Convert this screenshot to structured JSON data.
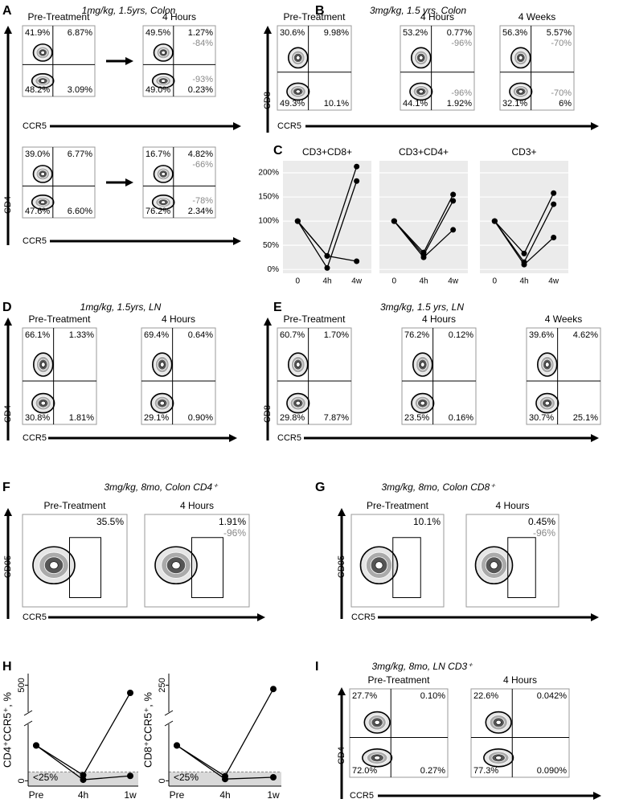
{
  "panels": [
    {
      "letter": "A",
      "title": "1mg/kg, 1.5yrs, Colon",
      "y_label": "CD4",
      "rows": [
        {
          "x_label": "CCR5",
          "plots": [
            {
              "title": "Pre-Treatment",
              "ul": "41.9%",
              "ur": "6.87%",
              "ll": "48.2%",
              "lr": "3.09%"
            },
            {
              "title": "4 Hours",
              "ul": "49.5%",
              "ur": "1.27%",
              "ur_change": "-84%",
              "ll": "49.0%",
              "lr": "0.23%",
              "lr_change": "-93%"
            }
          ]
        },
        {
          "x_label": "CCR5",
          "plots": [
            {
              "ul": "39.0%",
              "ur": "6.77%",
              "ll": "47.6%",
              "lr": "6.60%"
            },
            {
              "ul": "16.7%",
              "ur": "4.82%",
              "ur_change": "-66%",
              "ll": "76.2%",
              "lr": "2.34%",
              "lr_change": "-78%"
            }
          ]
        }
      ]
    },
    {
      "letter": "B",
      "title": "3mg/kg, 1.5 yrs, Colon",
      "y_label": "CD8",
      "rows": [
        {
          "x_label": "CCR5",
          "plots": [
            {
              "title": "Pre-Treatment",
              "ul": "30.6%",
              "ur": "9.98%",
              "ll": "49.3%",
              "lr": "10.1%"
            },
            {
              "title": "4 Hours",
              "ul": "53.2%",
              "ur": "0.77%",
              "ur_change": "-96%",
              "ll": "44.1%",
              "lr": "1.92%",
              "lr_change": "-96%"
            },
            {
              "title": "4 Weeks",
              "ul": "56.3%",
              "ur": "5.57%",
              "ur_change": "-70%",
              "ll": "32.1%",
              "lr": "6%",
              "lr_change": "-70%"
            }
          ]
        }
      ]
    },
    {
      "letter": "D",
      "title": "1mg/kg, 1.5yrs, LN",
      "y_label": "CD4",
      "rows": [
        {
          "x_label": "CCR5",
          "plots": [
            {
              "title": "Pre-Treatment",
              "ul": "66.1%",
              "ur": "1.33%",
              "ll": "30.8%",
              "lr": "1.81%"
            },
            {
              "title": "4 Hours",
              "ul": "69.4%",
              "ur": "0.64%",
              "ll": "29.1%",
              "lr": "0.90%"
            }
          ]
        }
      ]
    },
    {
      "letter": "E",
      "title": "3mg/kg, 1.5 yrs, LN",
      "y_label": "CD8",
      "rows": [
        {
          "x_label": "CCR5",
          "plots": [
            {
              "title": "Pre-Treatment",
              "ul": "60.7%",
              "ur": "1.70%",
              "ll": "29.8%",
              "lr": "7.87%"
            },
            {
              "title": "4 Hours",
              "ul": "76.2%",
              "ur": "0.12%",
              "ll": "23.5%",
              "lr": "0.16%"
            },
            {
              "title": "4 Weeks",
              "ul": "39.6%",
              "ur": "4.62%",
              "ll": "30.7%",
              "lr": "25.1%"
            }
          ]
        }
      ]
    },
    {
      "letter": "F",
      "title": "3mg/kg, 8mo, Colon CD4⁺",
      "y_label": "CD95",
      "rows": [
        {
          "x_label": "CCR5",
          "plots": [
            {
              "title": "Pre-Treatment",
              "gate": "35.5%"
            },
            {
              "title": "4 Hours",
              "gate": "1.91%",
              "gate_change": "-96%"
            }
          ]
        }
      ]
    },
    {
      "letter": "G",
      "title": "3mg/kg, 8mo, Colon CD8⁺",
      "y_label": "CD95",
      "rows": [
        {
          "x_label": "CCR5",
          "plots": [
            {
              "title": "Pre-Treatment",
              "gate": "10.1%"
            },
            {
              "title": "4 Hours",
              "gate": "0.45%",
              "gate_change": "-96%"
            }
          ]
        }
      ]
    },
    {
      "letter": "I",
      "title": "3mg/kg, 8mo, LN CD3⁺",
      "y_label": "CD4",
      "rows": [
        {
          "x_label": "CCR5",
          "plots": [
            {
              "title": "Pre-Treatment",
              "ul": "27.7%",
              "ur": "0.10%",
              "ll": "72.0%",
              "lr": "0.27%"
            },
            {
              "title": "4 Hours",
              "ul": "22.6%",
              "ur": "0.042%",
              "ll": "77.3%",
              "lr": "0.090%"
            }
          ]
        }
      ]
    }
  ],
  "chart_data": [
    {
      "type": "line",
      "panel_label": "C",
      "title": "CD3+CD8+",
      "categories": [
        "0",
        "4h",
        "4w"
      ],
      "ylim": [
        -8,
        225
      ],
      "yticks": [
        {
          "value": 0,
          "label": "0%"
        },
        {
          "value": 50,
          "label": "50%"
        },
        {
          "value": 100,
          "label": "100%"
        },
        {
          "value": 150,
          "label": "150%"
        },
        {
          "value": 200,
          "label": "200%"
        }
      ],
      "grid": true,
      "series": [
        {
          "color": "#000000",
          "values": [
            100,
            28,
            213
          ]
        },
        {
          "color": "#000000",
          "values": [
            100,
            3,
            183
          ]
        },
        {
          "color": "#000000",
          "values": [
            100,
            28,
            17
          ]
        }
      ]
    },
    {
      "type": "line",
      "title": "CD3+CD4+",
      "categories": [
        "0",
        "4h",
        "4w"
      ],
      "ylim": [
        -8,
        225
      ],
      "grid": true,
      "series": [
        {
          "color": "#000000",
          "values": [
            100,
            35,
            155
          ]
        },
        {
          "color": "#000000",
          "values": [
            100,
            30,
            142
          ]
        },
        {
          "color": "#000000",
          "values": [
            100,
            25,
            82
          ]
        }
      ]
    },
    {
      "type": "line",
      "title": "CD3+",
      "categories": [
        "0",
        "4h",
        "4w"
      ],
      "ylim": [
        -8,
        225
      ],
      "grid": true,
      "series": [
        {
          "color": "#000000",
          "values": [
            100,
            33,
            158
          ]
        },
        {
          "color": "#000000",
          "values": [
            100,
            15,
            135
          ]
        },
        {
          "color": "#000000",
          "values": [
            100,
            10,
            66
          ]
        }
      ]
    },
    {
      "type": "line",
      "panel_label": "H",
      "y_label": "CD4⁺CCR5⁺, %",
      "categories": [
        "Pre",
        "4h",
        "1w"
      ],
      "ylim": [
        -15,
        530
      ],
      "y_break": [
        160,
        430
      ],
      "yticks": [
        0,
        500
      ],
      "threshold": 25,
      "threshold_label": "<25%",
      "series": [
        {
          "color": "#000000",
          "values": [
            100,
            16,
            480
          ]
        },
        {
          "color": "#000000",
          "values": [
            100,
            3,
            14
          ]
        }
      ]
    },
    {
      "type": "line",
      "y_label": "CD8⁺CCR5⁺, %",
      "categories": [
        "Pre",
        "4h",
        "1w"
      ],
      "ylim": [
        -15,
        265
      ],
      "y_break": [
        160,
        215
      ],
      "yticks": [
        0,
        250
      ],
      "threshold": 25,
      "threshold_label": "<25%",
      "series": [
        {
          "color": "#000000",
          "values": [
            100,
            13,
            245
          ]
        },
        {
          "color": "#000000",
          "values": [
            100,
            5,
            10
          ]
        }
      ]
    }
  ]
}
